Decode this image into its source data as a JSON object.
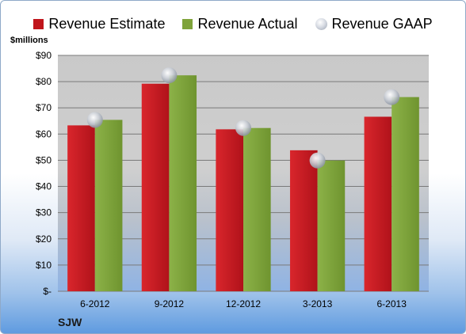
{
  "chart_data": {
    "type": "bar",
    "company": "SJW",
    "ylabel": "$millions",
    "categories": [
      "6-2012",
      "9-2012",
      "12-2012",
      "3-2013",
      "6-2013"
    ],
    "series": [
      {
        "name": "Revenue Estimate",
        "kind": "bar",
        "color": "#c0151c",
        "values": [
          63.3,
          79.2,
          61.8,
          53.8,
          66.6
        ]
      },
      {
        "name": "Revenue Actual",
        "kind": "bar",
        "color": "#7fa33a",
        "values": [
          65.4,
          82.4,
          62.3,
          49.9,
          74.1
        ]
      },
      {
        "name": "Revenue GAAP",
        "kind": "marker",
        "color": "#c0c4cc",
        "values": [
          65.4,
          82.4,
          62.3,
          49.9,
          74.1
        ]
      }
    ],
    "ylim": [
      0,
      90
    ],
    "yticks": [
      0,
      10,
      20,
      30,
      40,
      50,
      60,
      70,
      80,
      90
    ],
    "ytick_labels": [
      "$-",
      "$10",
      "$20",
      "$30",
      "$40",
      "$50",
      "$60",
      "$70",
      "$80",
      "$90"
    ],
    "grid": true,
    "legend_position": "top"
  }
}
